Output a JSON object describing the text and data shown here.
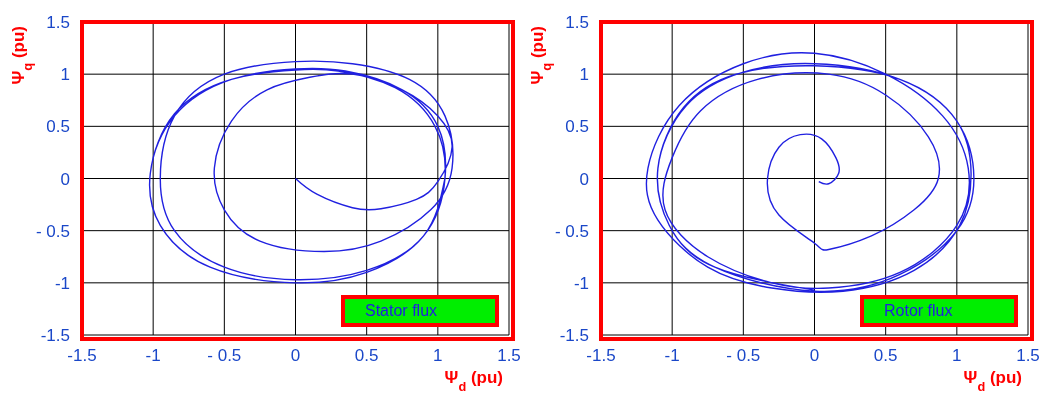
{
  "chart_data": [
    {
      "type": "line",
      "xlabel": "Ψ$_{d}$ (pu)",
      "ylabel": "Ψ$_{q}$ (pu)",
      "xlim": [
        -1.5,
        1.5
      ],
      "ylim": [
        -1.5,
        1.5
      ],
      "xticks": [
        -1.5,
        -1,
        {
          "value": -0.5,
          "label": "- 0.5"
        },
        0,
        0.5,
        1,
        1.5
      ],
      "yticks": [
        -1.5,
        -1,
        {
          "value": -0.5,
          "label": "- 0.5"
        },
        0,
        0.5,
        1,
        1.5
      ],
      "grid": true,
      "legend": "bottom right",
      "series": [
        {
          "name": "Stator flux",
          "color": "#2020e0",
          "x": [
            0,
            0.15,
            0.4,
            0.6,
            0.85,
            1.0,
            1.1,
            1.0,
            0.75,
            0.4,
            0.1,
            -0.2,
            -0.45,
            -0.57,
            -0.5,
            -0.25,
            0.2,
            0.6,
            0.95,
            1.1,
            1.05,
            0.8,
            0.4,
            0,
            -0.5,
            -0.85,
            -0.95,
            -0.85,
            -0.5,
            0,
            0.5,
            0.9,
            1.05,
            1.0,
            0.75,
            0.35,
            0,
            -0.45,
            -0.85,
            -1.02,
            -0.95,
            -0.6,
            0,
            0.5,
            0.9,
            1.05,
            0.98,
            0.7,
            0.3,
            0,
            -0.45,
            -0.85,
            -1.02,
            -0.95,
            -0.6,
            0,
            0.5,
            0.9,
            1.05
          ],
          "values": [
            0,
            -0.15,
            -0.28,
            -0.29,
            -0.2,
            -0.03,
            0.3,
            0.6,
            0.85,
            1.0,
            0.97,
            0.85,
            0.55,
            0.1,
            -0.3,
            -0.6,
            -0.7,
            -0.6,
            -0.3,
            0.1,
            0.6,
            0.95,
            1.1,
            1.12,
            1.0,
            0.6,
            0,
            -0.5,
            -0.85,
            -0.97,
            -0.88,
            -0.55,
            0,
            0.5,
            0.85,
            1.03,
            1.05,
            0.95,
            0.6,
            0.05,
            -0.45,
            -0.85,
            -1.0,
            -0.9,
            -0.55,
            0,
            0.5,
            0.87,
            1.03,
            1.04,
            0.95,
            0.62,
            0.05,
            -0.45,
            -0.85,
            -1.0,
            -0.9,
            -0.55,
            0
          ]
        }
      ]
    },
    {
      "type": "line",
      "xlabel": "Ψ$_{d}$ (pu)",
      "ylabel": "Ψ$_{q}$ (pu)",
      "xlim": [
        -1.5,
        1.5
      ],
      "ylim": [
        -1.5,
        1.5
      ],
      "xticks": [
        -1.5,
        -1,
        {
          "value": -0.5,
          "label": "- 0.5"
        },
        0,
        0.5,
        1,
        1.5
      ],
      "yticks": [
        -1.5,
        -1,
        {
          "value": -0.5,
          "label": "- 0.5"
        },
        0,
        0.5,
        1,
        1.5
      ],
      "grid": true,
      "legend": "bottom right",
      "series": [
        {
          "name": "Rotor flux",
          "color": "#2020e0",
          "x": [
            0.03,
            0.1,
            0.17,
            0.15,
            0.05,
            -0.1,
            -0.25,
            -0.33,
            -0.25,
            0,
            0.1,
            0.4,
            0.7,
            0.87,
            0.8,
            0.5,
            0.1,
            -0.4,
            -0.8,
            -1.0,
            -1.05,
            -0.75,
            -0.3,
            0.1,
            0.6,
            1.0,
            1.08,
            0.9,
            0.5,
            0,
            -0.5,
            -0.95,
            -1.17,
            -1.1,
            -0.75,
            -0.3,
            0.2,
            0.7,
            1.02,
            1.1,
            1.0,
            0.6,
            0,
            -0.5,
            -0.9,
            -1.1,
            -1.02,
            -0.7,
            0,
            0.6,
            1.0,
            1.12,
            1.0,
            0.6,
            0,
            -0.55,
            -0.92,
            -1.1,
            -1.02,
            -0.7,
            0
          ],
          "values": [
            -0.03,
            -0.05,
            0.05,
            0.2,
            0.38,
            0.42,
            0.3,
            0,
            -0.35,
            -0.62,
            -0.68,
            -0.55,
            -0.3,
            0,
            0.4,
            0.8,
            1.0,
            0.95,
            0.65,
            0.2,
            -0.3,
            -0.75,
            -1.0,
            -1.05,
            -0.9,
            -0.45,
            0.1,
            0.6,
            1.0,
            1.2,
            1.1,
            0.7,
            0.1,
            -0.4,
            -0.85,
            -1.05,
            -1.08,
            -0.88,
            -0.45,
            0.05,
            0.55,
            0.95,
            1.1,
            1.02,
            0.7,
            0.1,
            -0.45,
            -0.85,
            -1.08,
            -0.92,
            -0.5,
            0,
            0.55,
            0.95,
            1.08,
            1.0,
            0.68,
            0.1,
            -0.45,
            -0.85,
            -1.07
          ]
        }
      ]
    }
  ]
}
